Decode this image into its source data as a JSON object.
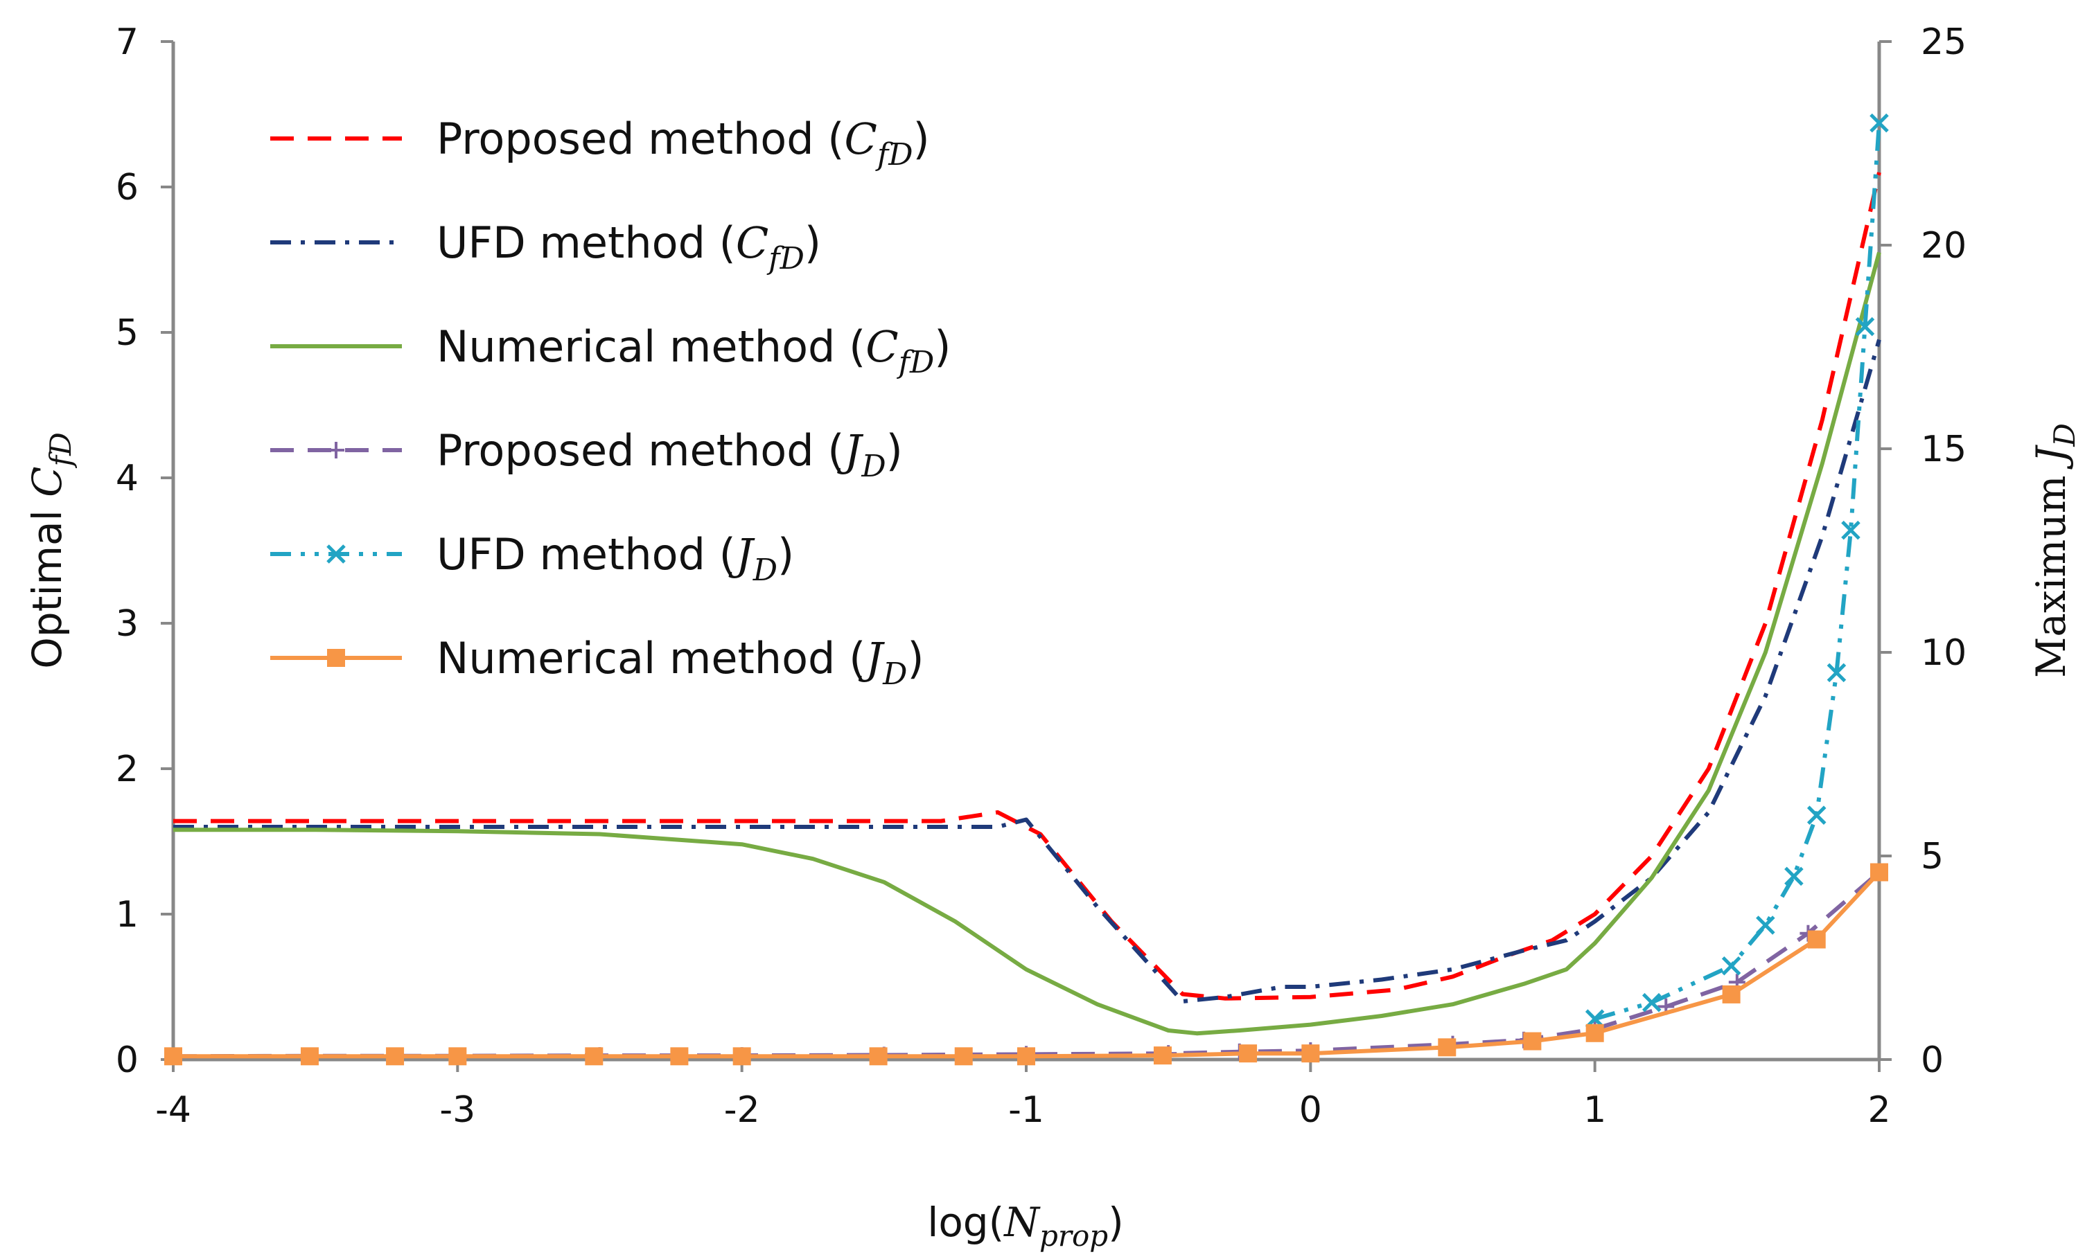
{
  "chart_data": {
    "type": "line",
    "x_label": {
      "prefix": "log(",
      "var": "N",
      "sub": "prop",
      "suffix": ")"
    },
    "y_left_label": {
      "prefix": "Optimal ",
      "var": "C",
      "sub": "fD"
    },
    "y_right_label": {
      "prefix": "Maximum ",
      "var": "J",
      "sub": "D"
    },
    "x_range": [
      -4,
      2
    ],
    "y_left_range": [
      0,
      7
    ],
    "y_right_range": [
      0,
      25
    ],
    "x_ticks": [
      "-4",
      "-3",
      "-2",
      "-1",
      "0",
      "1",
      "2"
    ],
    "y_left_ticks": [
      "0",
      "1",
      "2",
      "3",
      "4",
      "5",
      "6",
      "7"
    ],
    "y_right_ticks": [
      "0",
      "5",
      "10",
      "15",
      "20",
      "25"
    ],
    "legend_position": "top-left",
    "series": [
      {
        "name": "Proposed method",
        "legend_prefix": "Proposed method (",
        "legend_var": "C",
        "legend_sub": "fD",
        "legend_suffix": ")",
        "axis": "left",
        "color": "#ff0000",
        "dash": "dash",
        "marker": "none",
        "x": [
          -4,
          -3,
          -2,
          -1.3,
          -1.1,
          -0.95,
          -0.7,
          -0.45,
          -0.3,
          0,
          0.3,
          0.5,
          0.7,
          0.85,
          1,
          1.2,
          1.4,
          1.6,
          1.8,
          2
        ],
        "y": [
          1.64,
          1.64,
          1.64,
          1.64,
          1.7,
          1.55,
          0.95,
          0.45,
          0.42,
          0.43,
          0.48,
          0.57,
          0.72,
          0.82,
          1.0,
          1.4,
          2.0,
          3.0,
          4.4,
          6.1
        ]
      },
      {
        "name": "UFD method",
        "legend_prefix": "UFD method (",
        "legend_var": "C",
        "legend_sub": "fD",
        "legend_suffix": ")",
        "axis": "left",
        "color": "#1f3a7a",
        "dash": "dashdot",
        "marker": "none",
        "x": [
          -4,
          -3,
          -2,
          -1.3,
          -1.1,
          -1.0,
          -0.75,
          -0.45,
          -0.3,
          -0.1,
          0,
          0.25,
          0.5,
          0.75,
          0.9,
          1,
          1.2,
          1.4,
          1.6,
          1.8,
          2
        ],
        "y": [
          1.6,
          1.6,
          1.6,
          1.6,
          1.6,
          1.65,
          1.05,
          0.4,
          0.43,
          0.5,
          0.5,
          0.55,
          0.62,
          0.75,
          0.82,
          0.95,
          1.25,
          1.7,
          2.5,
          3.6,
          4.95
        ]
      },
      {
        "name": "Numerical method",
        "legend_prefix": "Numerical method (",
        "legend_var": "C",
        "legend_sub": "fD",
        "legend_suffix": ")",
        "axis": "left",
        "color": "#77ab43",
        "dash": "solid",
        "marker": "none",
        "x": [
          -4,
          -3.5,
          -3,
          -2.5,
          -2,
          -1.75,
          -1.5,
          -1.25,
          -1.0,
          -0.75,
          -0.5,
          -0.4,
          -0.25,
          0,
          0.25,
          0.5,
          0.75,
          0.9,
          1,
          1.2,
          1.4,
          1.6,
          1.8,
          2
        ],
        "y": [
          1.58,
          1.58,
          1.57,
          1.55,
          1.48,
          1.38,
          1.22,
          0.95,
          0.62,
          0.38,
          0.2,
          0.18,
          0.2,
          0.24,
          0.3,
          0.38,
          0.52,
          0.62,
          0.8,
          1.25,
          1.85,
          2.8,
          4.1,
          5.55
        ]
      },
      {
        "name": "Proposed method",
        "legend_prefix": "Proposed method (",
        "legend_var": "J",
        "legend_sub": "D",
        "legend_suffix": ")",
        "axis": "right",
        "color": "#8064a2",
        "dash": "dash",
        "marker": "plus",
        "x": [
          -4,
          -3.5,
          -3,
          -2.5,
          -2,
          -1.5,
          -1,
          -0.5,
          -0.25,
          0,
          0.5,
          0.75,
          1,
          1.25,
          1.5,
          1.75,
          2
        ],
        "y": [
          0.08,
          0.09,
          0.09,
          0.1,
          0.1,
          0.11,
          0.13,
          0.15,
          0.19,
          0.22,
          0.38,
          0.48,
          0.75,
          1.3,
          1.9,
          3.1,
          4.6
        ]
      },
      {
        "name": "UFD method",
        "legend_prefix": "UFD method (",
        "legend_var": "J",
        "legend_sub": "D",
        "legend_suffix": ")",
        "axis": "right",
        "color": "#22a4c4",
        "dash": "dashdotdot",
        "marker": "x",
        "x": [
          1,
          1.2,
          1.48,
          1.6,
          1.7,
          1.78,
          1.85,
          1.9,
          1.95,
          2
        ],
        "y": [
          1.0,
          1.4,
          2.3,
          3.3,
          4.5,
          6.0,
          9.5,
          13.0,
          18.0,
          23.0
        ]
      },
      {
        "name": "Numerical method",
        "legend_prefix": "Numerical method (",
        "legend_var": "J",
        "legend_sub": "D",
        "legend_suffix": ")",
        "axis": "right",
        "color": "#f79646",
        "dash": "solid",
        "marker": "square",
        "x": [
          -4,
          -3.52,
          -3.22,
          -3,
          -2.52,
          -2.22,
          -2,
          -1.52,
          -1.22,
          -1,
          -0.52,
          -0.22,
          0,
          0.48,
          0.78,
          1,
          1.48,
          1.78,
          2
        ],
        "y": [
          0.08,
          0.08,
          0.08,
          0.08,
          0.08,
          0.08,
          0.08,
          0.08,
          0.08,
          0.08,
          0.1,
          0.15,
          0.15,
          0.3,
          0.45,
          0.65,
          1.6,
          2.95,
          4.6
        ]
      }
    ]
  }
}
